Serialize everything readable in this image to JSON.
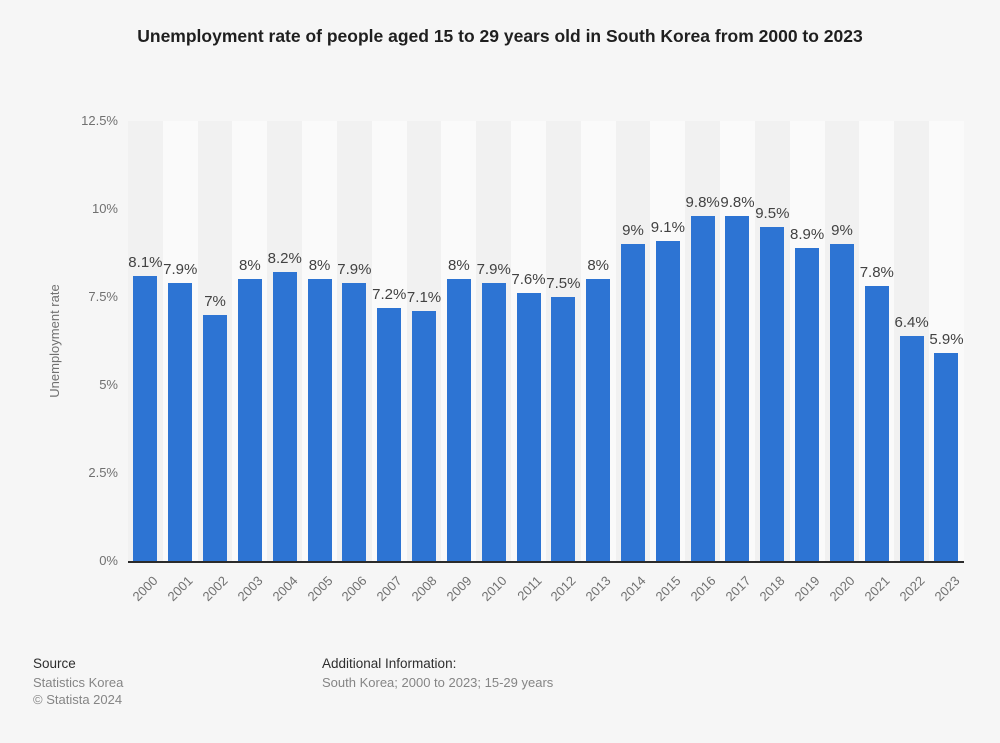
{
  "chart_data": {
    "type": "bar",
    "title": "Unemployment rate of people aged 15 to 29 years old in South Korea from 2000 to 2023",
    "categories": [
      "2000",
      "2001",
      "2002",
      "2003",
      "2004",
      "2005",
      "2006",
      "2007",
      "2008",
      "2009",
      "2010",
      "2011",
      "2012",
      "2013",
      "2014",
      "2015",
      "2016",
      "2017",
      "2018",
      "2019",
      "2020",
      "2021",
      "2022",
      "2023"
    ],
    "values": [
      8.1,
      7.9,
      7,
      8,
      8.2,
      8,
      7.9,
      7.2,
      7.1,
      8,
      7.9,
      7.6,
      7.5,
      8,
      9,
      9.1,
      9.8,
      9.8,
      9.5,
      8.9,
      9,
      7.8,
      6.4,
      5.9
    ],
    "value_labels": [
      "8.1%",
      "7.9%",
      "7%",
      "8%",
      "8.2%",
      "8%",
      "7.9%",
      "7.2%",
      "7.1%",
      "8%",
      "7.9%",
      "7.6%",
      "7.5%",
      "8%",
      "9%",
      "9.1%",
      "9.8%",
      "9.8%",
      "9.5%",
      "8.9%",
      "9%",
      "7.8%",
      "6.4%",
      "5.9%"
    ],
    "xlabel": "",
    "ylabel": "Unemployment rate",
    "ylim": [
      0,
      12.5
    ],
    "ytick_labels": [
      "0%",
      "2.5%",
      "5%",
      "7.5%",
      "10%",
      "12.5%"
    ],
    "grid": "horizontal-dotted",
    "legend": "none",
    "bar_color": "#2d74d3",
    "stripe_dark": "#f1f1f1",
    "stripe_light": "#fafafa"
  },
  "footer": {
    "source_label": "Source",
    "source_name": "Statistics Korea",
    "copyright": "© Statista 2024",
    "additional_label": "Additional Information:",
    "additional_text": "South Korea; 2000 to 2023; 15-29 years"
  }
}
